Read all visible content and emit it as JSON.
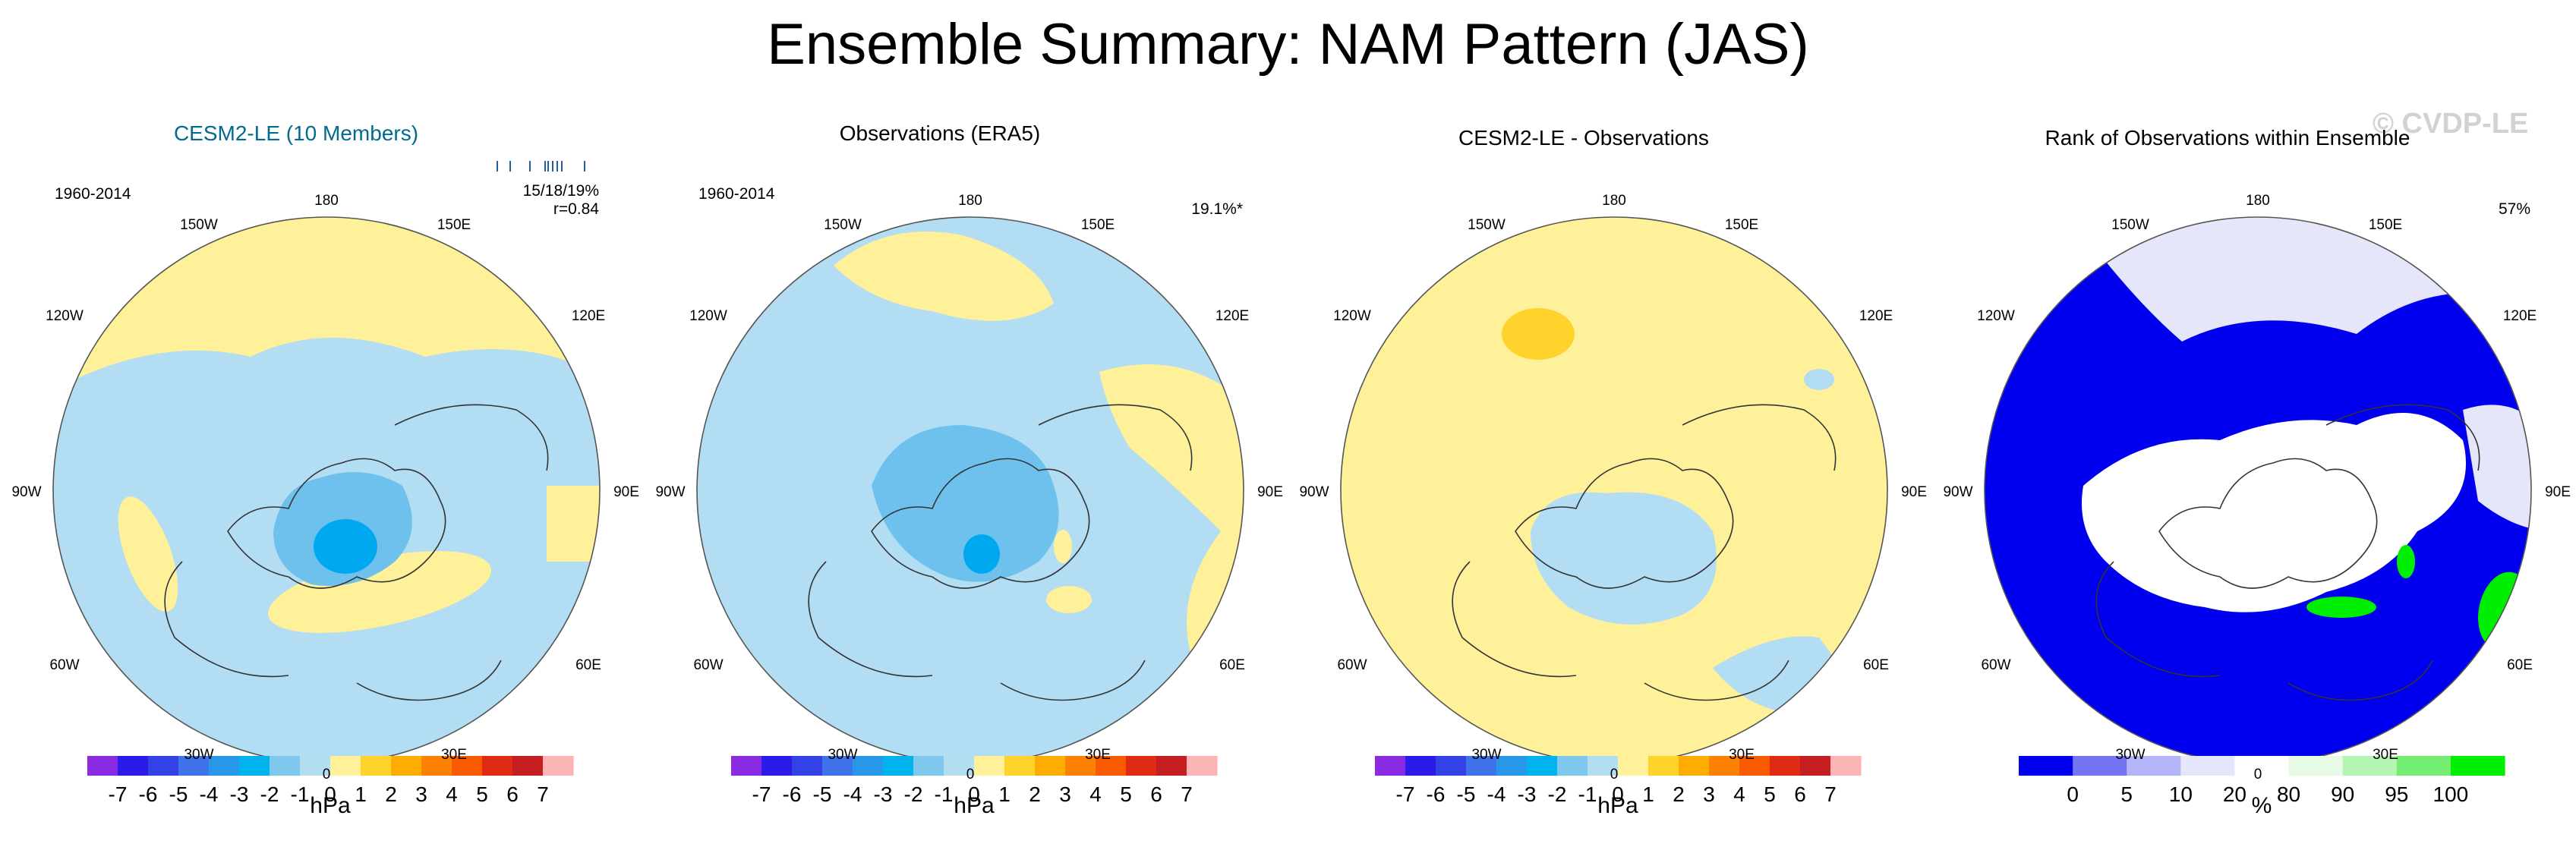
{
  "title": "Ensemble Summary: NAM Pattern (JAS)",
  "watermark": "© CVDP-LE",
  "colors": {
    "land": "#fef19a",
    "ocean_pos": "#fef19a",
    "neg1": "#b3ddf2",
    "neg2": "#6ec1ed",
    "neg3": "#00a9ef",
    "pos2": "#fdd32c",
    "rank_lo": "#0000ee",
    "rank_mid": "#e6e6fa",
    "rank_hi": "#00ee00"
  },
  "longitude_labels": [
    "180",
    "150W",
    "150E",
    "120W",
    "120E",
    "90W",
    "90E",
    "60W",
    "60E",
    "30W",
    "30E",
    "0"
  ],
  "panels": [
    {
      "title": "CESM2-LE (10 Members)",
      "period": "1960-2014",
      "stat_line1": "15/18/19%",
      "stat_line2": "r=0.84",
      "title_color": "#006b8f"
    },
    {
      "title": "Observations (ERA5)",
      "period": "1960-2014",
      "stat_line1": "19.1%*",
      "stat_line2": ""
    },
    {
      "title": "CESM2-LE - Observations",
      "period": "",
      "stat_line1": "",
      "stat_line2": ""
    },
    {
      "title": "Rank of Observations within Ensemble",
      "period": "",
      "stat_line1": "57%",
      "stat_line2": ""
    }
  ],
  "colorbar_hpa": {
    "unit": "hPa",
    "levels": [
      "-7",
      "-6",
      "-5",
      "-4",
      "-3",
      "-2",
      "-1",
      "0",
      "1",
      "2",
      "3",
      "4",
      "5",
      "6",
      "7"
    ],
    "colors": [
      "#8a2be2",
      "#2b1ae8",
      "#3242e6",
      "#3f72e8",
      "#2797ea",
      "#00b2ee",
      "#7ec8ee",
      "#b3def2",
      "#fef19a",
      "#fdd32c",
      "#fdad00",
      "#fd8100",
      "#f95a00",
      "#e12a14",
      "#c41e22",
      "#fcb5b5"
    ]
  },
  "colorbar_rank": {
    "unit": "%",
    "levels": [
      "0",
      "5",
      "10",
      "20",
      "80",
      "90",
      "95",
      "100"
    ],
    "colors": [
      "#0000ee",
      "#7373f4",
      "#b4b4f8",
      "#e6e6fa",
      "#ffffff",
      "#e6fae6",
      "#b4f5b4",
      "#73ee73",
      "#00ee00"
    ]
  }
}
